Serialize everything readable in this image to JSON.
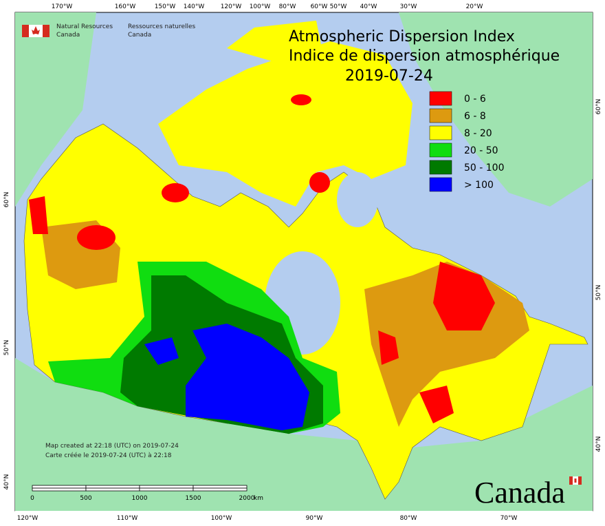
{
  "header": {
    "agency_en": [
      "Natural Resources",
      "Canada"
    ],
    "agency_fr": [
      "Ressources naturelles",
      "Canada"
    ]
  },
  "title": {
    "line1": "Atmospheric Dispersion Index",
    "line2": "Indice de dispersion atmosphérique",
    "date": "2019-07-24"
  },
  "legend": {
    "items": [
      {
        "label": "0 - 6",
        "color": "#ff0000"
      },
      {
        "label": "6 - 8",
        "color": "#dd9a10"
      },
      {
        "label": "8 - 20",
        "color": "#ffff00"
      },
      {
        "label": "20 - 50",
        "color": "#10dd10"
      },
      {
        "label": "50 - 100",
        "color": "#007a00"
      },
      {
        "label": "> 100",
        "color": "#0000ff"
      }
    ]
  },
  "graticule": {
    "top": [
      "170°W",
      "160°W",
      "150°W",
      "140°W",
      "120°W",
      "100°W",
      "80°W",
      "60°W",
      "50°W",
      "40°W",
      "30°W",
      "20°W"
    ],
    "bottom": [
      "120°W",
      "110°W",
      "100°W",
      "90°W",
      "80°W",
      "70°W"
    ],
    "left": [
      "60°N",
      "50°N",
      "40°N"
    ],
    "right": [
      "60°N",
      "50°N",
      "40°N"
    ]
  },
  "notes": [
    "Map created at 22:18 (UTC) on 2019-07-24",
    "Carte créée le 2019-07-24 (UTC) à 22:18"
  ],
  "scale_bar": {
    "labels": [
      "0",
      "500",
      "1000",
      "1500",
      "2000"
    ],
    "unit": "km"
  },
  "wordmark": "Canada"
}
